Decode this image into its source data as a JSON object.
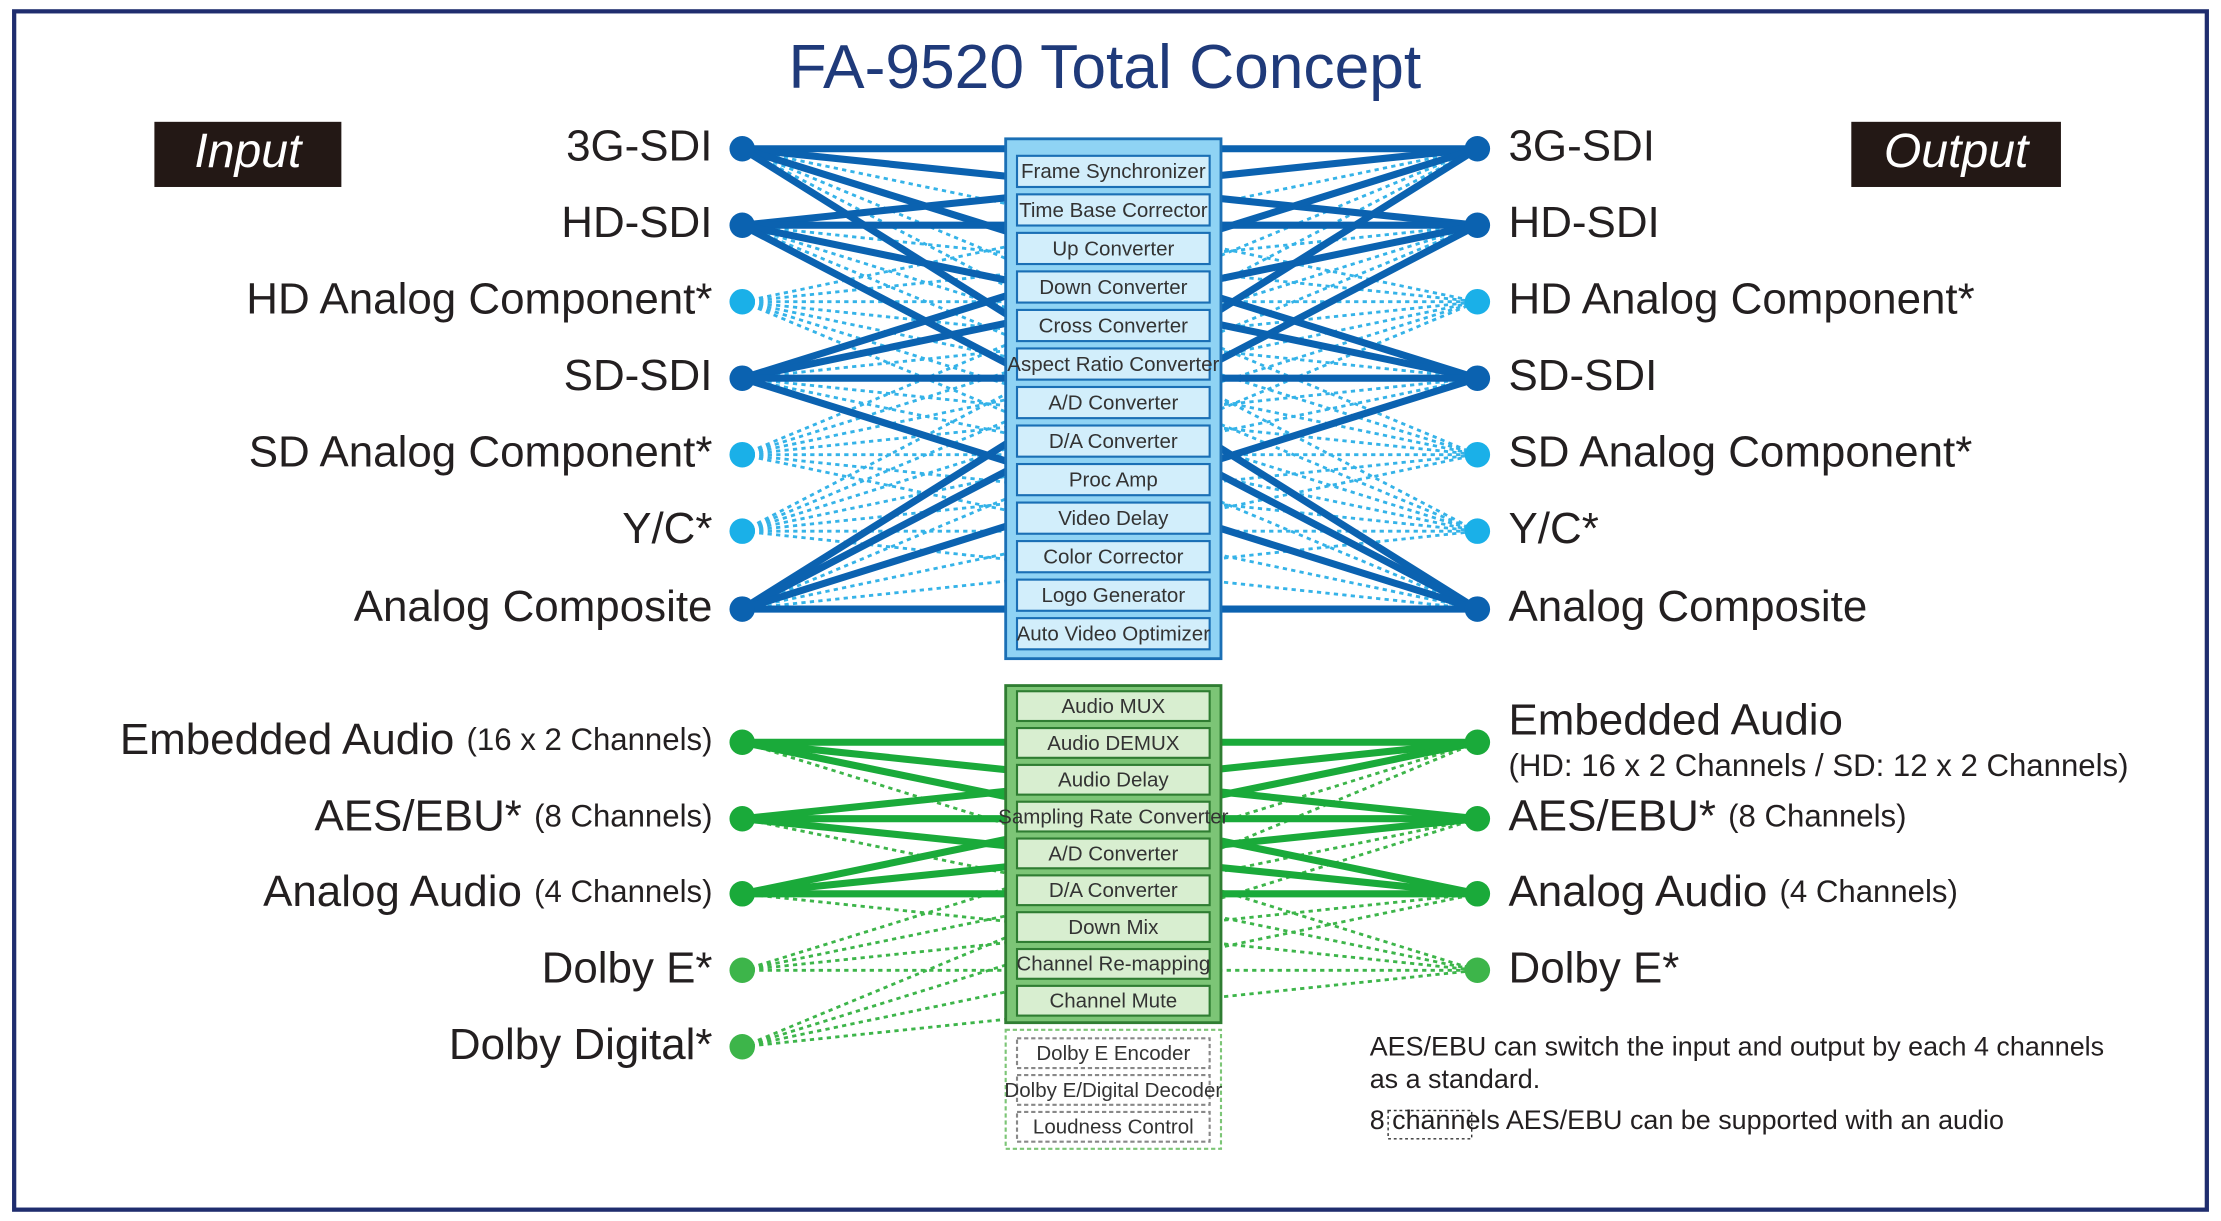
{
  "title": "FA-9520 Total Concept",
  "input_label": "Input",
  "output_label": "Output",
  "video_inputs": [
    {
      "label": "3G-SDI"
    },
    {
      "label": "HD-SDI"
    },
    {
      "label": "HD Analog Component*"
    },
    {
      "label": "SD-SDI"
    },
    {
      "label": "SD Analog Component*"
    },
    {
      "label": "Y/C*"
    },
    {
      "label": "Analog Composite"
    }
  ],
  "video_outputs": [
    {
      "label": "3G-SDI"
    },
    {
      "label": "HD-SDI"
    },
    {
      "label": "HD Analog Component*"
    },
    {
      "label": "SD-SDI"
    },
    {
      "label": "SD Analog Component*"
    },
    {
      "label": "Y/C*"
    },
    {
      "label": "Analog Composite"
    }
  ],
  "audio_inputs": [
    {
      "label": "Embedded Audio",
      "sub": "(16 x 2 Channels)"
    },
    {
      "label": "AES/EBU*",
      "sub": "(8 Channels)"
    },
    {
      "label": "Analog Audio",
      "sub": "(4 Channels)"
    },
    {
      "label": "Dolby E*"
    },
    {
      "label": "Dolby Digital*"
    }
  ],
  "audio_outputs": [
    {
      "label": "Embedded Audio",
      "sub": "(HD: 16 x 2 Channels / SD: 12 x 2 Channels)"
    },
    {
      "label": "AES/EBU*",
      "sub": "(8 Channels)"
    },
    {
      "label": "Analog Audio",
      "sub": "(4 Channels)"
    },
    {
      "label": "Dolby E*"
    }
  ],
  "video_functions": [
    "Frame Synchronizer",
    "Time Base Corrector",
    "Up Converter",
    "Down Converter",
    "Cross Converter",
    "Aspect Ratio Converter",
    "A/D Converter",
    "D/A Converter",
    "Proc Amp",
    "Video Delay",
    "Color Corrector",
    "Logo Generator",
    "Auto Video Optimizer"
  ],
  "audio_functions": [
    "Audio MUX",
    "Audio DEMUX",
    "Audio Delay",
    "Sampling Rate Converter",
    "A/D Converter",
    "D/A Converter",
    "Down Mix",
    "Channel Re-mapping",
    "Channel Mute"
  ],
  "optional_functions": [
    "Dolby E Encoder",
    "Dolby E/Digital Decoder",
    "Loudness Control"
  ],
  "notes": [
    "AES/EBU can switch the input and output by each 4 channels",
    "as a standard.",
    "8 channels AES/EBU can be supported with an audio"
  ]
}
